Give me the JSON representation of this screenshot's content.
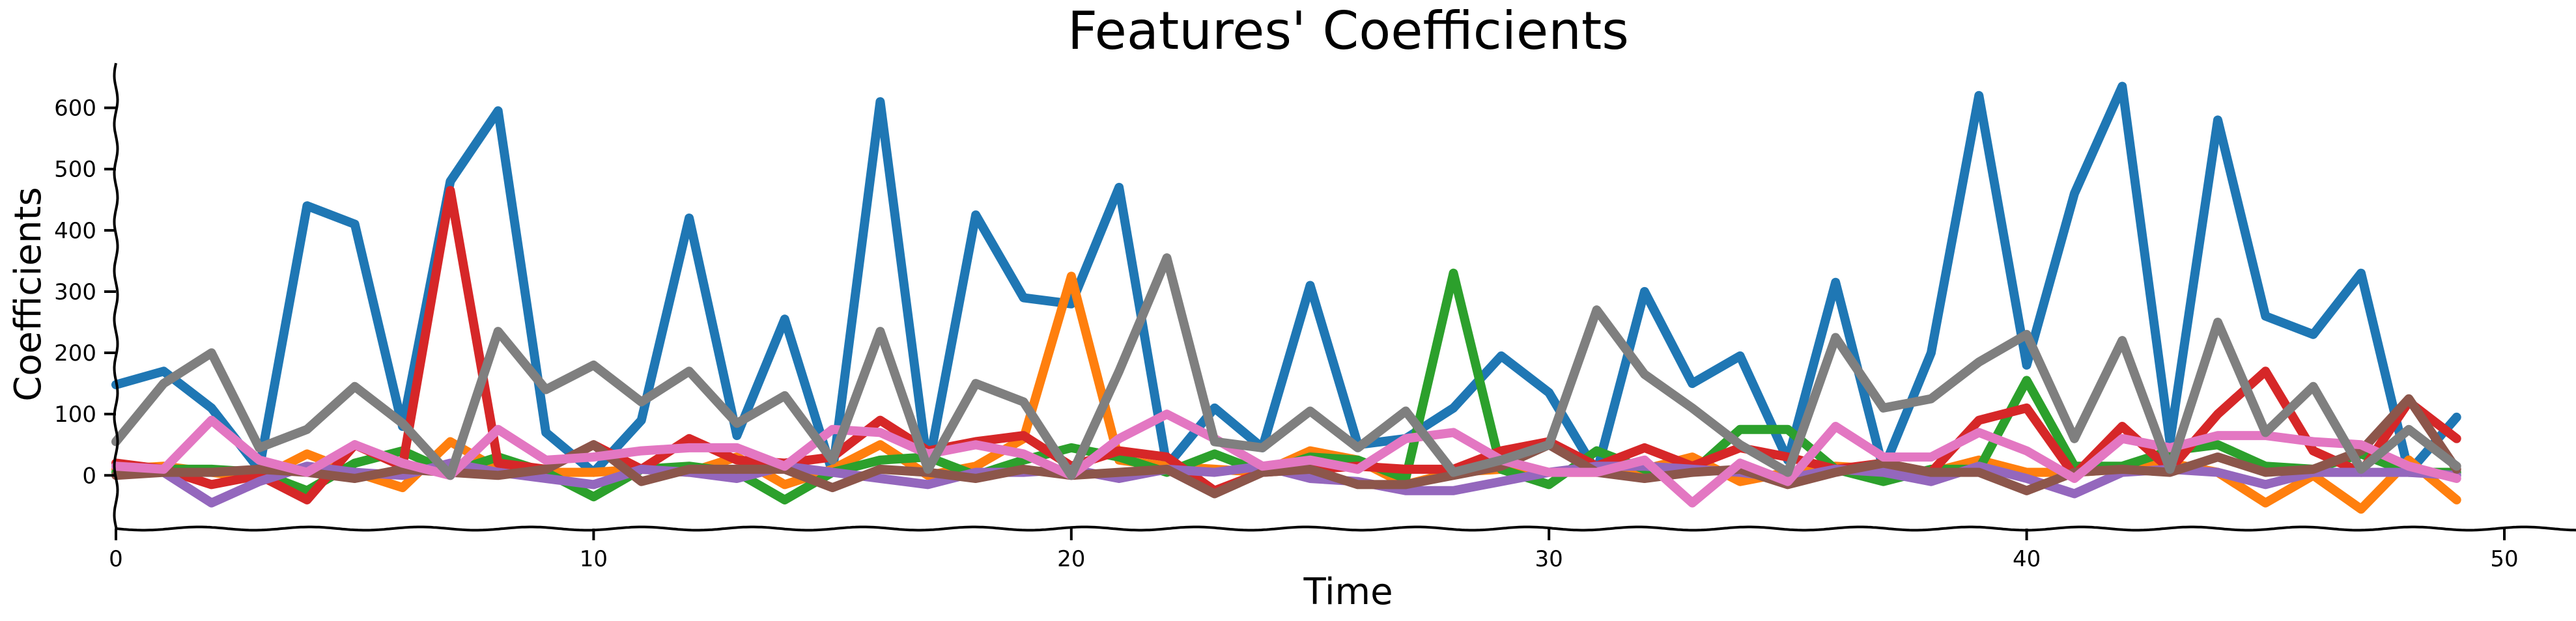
{
  "chart_data": {
    "type": "line",
    "title": "Features' Coefficients",
    "xlabel": "Time",
    "ylabel": "Coefficients",
    "xlim": [
      0,
      51.5
    ],
    "ylim": [
      -90,
      675
    ],
    "xticks": [
      0,
      10,
      20,
      30,
      40,
      50
    ],
    "yticks": [
      0,
      100,
      200,
      300,
      400,
      500,
      600
    ],
    "grid": false,
    "legend": "none",
    "x": [
      0,
      1,
      2,
      3,
      4,
      5,
      6,
      7,
      8,
      9,
      10,
      11,
      12,
      13,
      14,
      15,
      16,
      17,
      18,
      19,
      20,
      21,
      22,
      23,
      24,
      25,
      26,
      27,
      28,
      29,
      30,
      31,
      32,
      33,
      34,
      35,
      36,
      37,
      38,
      39,
      40,
      41,
      42,
      43,
      44,
      45,
      46,
      47,
      48,
      49
    ],
    "series": [
      {
        "color": "#1f77b4",
        "values": [
          148,
          170,
          110,
          10,
          440,
          410,
          80,
          480,
          595,
          70,
          5,
          90,
          420,
          65,
          255,
          5,
          610,
          10,
          425,
          290,
          280,
          470,
          15,
          110,
          45,
          310,
          50,
          60,
          110,
          195,
          135,
          5,
          300,
          150,
          195,
          25,
          315,
          10,
          200,
          620,
          180,
          460,
          635,
          55,
          580,
          260,
          230,
          330,
          5,
          95
        ]
      },
      {
        "color": "#ff7f0e",
        "values": [
          10,
          15,
          5,
          -5,
          35,
          5,
          -20,
          55,
          10,
          5,
          5,
          10,
          5,
          30,
          -15,
          10,
          50,
          0,
          15,
          60,
          325,
          25,
          15,
          10,
          5,
          40,
          25,
          -15,
          5,
          10,
          5,
          5,
          10,
          30,
          -10,
          5,
          15,
          10,
          5,
          25,
          5,
          5,
          10,
          20,
          5,
          -45,
          0,
          -55,
          25,
          -40
        ]
      },
      {
        "color": "#2ca02c",
        "values": [
          5,
          10,
          10,
          5,
          -25,
          20,
          40,
          5,
          30,
          5,
          -35,
          10,
          15,
          5,
          -40,
          5,
          25,
          30,
          0,
          25,
          45,
          30,
          5,
          35,
          5,
          30,
          25,
          -5,
          330,
          10,
          -15,
          40,
          10,
          5,
          75,
          75,
          10,
          -10,
          10,
          10,
          155,
          15,
          15,
          40,
          50,
          15,
          10,
          35,
          5,
          5
        ]
      },
      {
        "color": "#d62728",
        "values": [
          20,
          10,
          -15,
          0,
          -40,
          50,
          15,
          465,
          20,
          10,
          50,
          10,
          60,
          25,
          20,
          30,
          90,
          40,
          55,
          65,
          15,
          40,
          30,
          -25,
          5,
          10,
          15,
          10,
          10,
          40,
          55,
          15,
          45,
          15,
          45,
          30,
          10,
          20,
          5,
          90,
          110,
          0,
          80,
          10,
          100,
          170,
          40,
          5,
          120,
          60
        ]
      },
      {
        "color": "#9467bd",
        "values": [
          15,
          5,
          -45,
          -10,
          15,
          5,
          0,
          20,
          5,
          -5,
          -15,
          10,
          5,
          -5,
          15,
          5,
          -5,
          -15,
          5,
          5,
          10,
          -5,
          10,
          5,
          15,
          -5,
          -10,
          -25,
          -25,
          -10,
          5,
          15,
          15,
          10,
          5,
          -5,
          10,
          5,
          -10,
          15,
          -5,
          -30,
          5,
          10,
          5,
          -15,
          5,
          5,
          5,
          0
        ]
      },
      {
        "color": "#8c564b",
        "values": [
          0,
          5,
          5,
          10,
          5,
          -5,
          10,
          5,
          0,
          10,
          50,
          -10,
          10,
          10,
          10,
          -20,
          10,
          5,
          -5,
          10,
          0,
          5,
          10,
          -30,
          5,
          10,
          -15,
          -15,
          0,
          15,
          50,
          5,
          -5,
          5,
          10,
          -15,
          5,
          20,
          5,
          5,
          -25,
          5,
          10,
          5,
          30,
          5,
          10,
          40,
          125,
          10
        ]
      },
      {
        "color": "#e377c2",
        "values": [
          15,
          10,
          90,
          25,
          5,
          50,
          20,
          0,
          75,
          25,
          30,
          40,
          45,
          45,
          15,
          75,
          70,
          35,
          50,
          35,
          0,
          60,
          100,
          60,
          15,
          25,
          10,
          60,
          70,
          25,
          5,
          5,
          25,
          -45,
          20,
          -10,
          80,
          30,
          30,
          70,
          40,
          -5,
          60,
          45,
          65,
          65,
          55,
          50,
          15,
          -5
        ]
      },
      {
        "color": "#7f7f7f",
        "values": [
          55,
          150,
          200,
          45,
          75,
          145,
          85,
          0,
          235,
          140,
          180,
          120,
          170,
          85,
          130,
          25,
          235,
          10,
          150,
          120,
          0,
          170,
          355,
          55,
          45,
          105,
          45,
          105,
          5,
          25,
          50,
          270,
          165,
          110,
          50,
          5,
          225,
          110,
          125,
          185,
          230,
          60,
          220,
          10,
          250,
          70,
          145,
          10,
          75,
          15
        ]
      }
    ]
  }
}
